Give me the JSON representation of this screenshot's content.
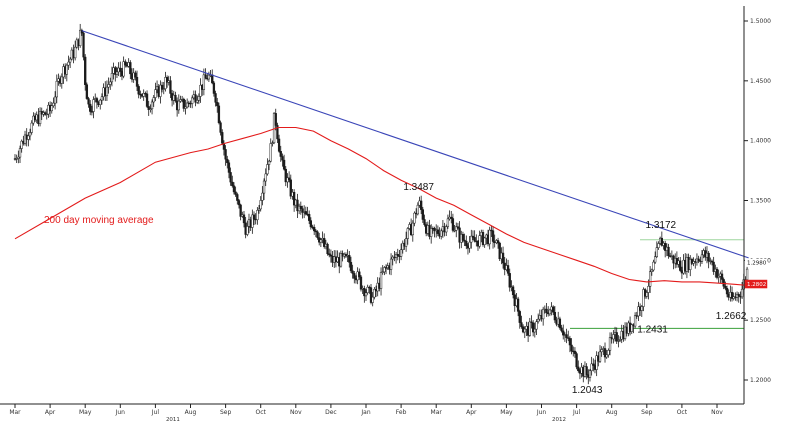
{
  "chart_data": {
    "type": "candlestick",
    "title": "",
    "xlabel": "",
    "ylabel": "",
    "ylim": [
      1.18,
      1.51
    ],
    "y_ticks": [
      "1.5000",
      "1.4500",
      "1.4000",
      "1.3500",
      "1.3000",
      "1.2500",
      "1.2000"
    ],
    "x_ticks": [
      "Mar",
      "Apr",
      "May",
      "Jun",
      "Jul",
      "Aug",
      "Sep",
      "Oct",
      "Nov",
      "Dec",
      "Jan",
      "Feb",
      "Mar",
      "Apr",
      "May",
      "Jun",
      "Jul",
      "Aug",
      "Sep",
      "Oct",
      "Nov"
    ],
    "year_labels": [
      {
        "label": "2011",
        "month_index": 4.5
      },
      {
        "label": "2012",
        "month_index": 15.5
      }
    ],
    "price_path": [
      [
        0.0,
        1.385
      ],
      [
        0.3,
        1.405
      ],
      [
        0.6,
        1.418
      ],
      [
        1.0,
        1.425
      ],
      [
        1.3,
        1.455
      ],
      [
        1.7,
        1.475
      ],
      [
        1.9,
        1.492
      ],
      [
        2.0,
        1.45
      ],
      [
        2.1,
        1.428
      ],
      [
        2.5,
        1.438
      ],
      [
        2.8,
        1.455
      ],
      [
        3.2,
        1.462
      ],
      [
        3.5,
        1.445
      ],
      [
        3.8,
        1.43
      ],
      [
        4.0,
        1.438
      ],
      [
        4.3,
        1.45
      ],
      [
        4.6,
        1.43
      ],
      [
        4.9,
        1.43
      ],
      [
        5.2,
        1.44
      ],
      [
        5.5,
        1.455
      ],
      [
        5.7,
        1.44
      ],
      [
        6.0,
        1.385
      ],
      [
        6.3,
        1.35
      ],
      [
        6.6,
        1.325
      ],
      [
        6.9,
        1.34
      ],
      [
        7.1,
        1.37
      ],
      [
        7.3,
        1.395
      ],
      [
        7.4,
        1.422
      ],
      [
        7.6,
        1.38
      ],
      [
        8.0,
        1.345
      ],
      [
        8.5,
        1.33
      ],
      [
        9.0,
        1.3
      ],
      [
        9.5,
        1.3
      ],
      [
        9.9,
        1.278
      ],
      [
        10.2,
        1.268
      ],
      [
        10.5,
        1.29
      ],
      [
        11.0,
        1.31
      ],
      [
        11.3,
        1.328
      ],
      [
        11.5,
        1.3487
      ],
      [
        11.8,
        1.32
      ],
      [
        12.1,
        1.325
      ],
      [
        12.4,
        1.335
      ],
      [
        12.7,
        1.318
      ],
      [
        13.0,
        1.315
      ],
      [
        13.3,
        1.318
      ],
      [
        13.6,
        1.32
      ],
      [
        13.9,
        1.3
      ],
      [
        14.2,
        1.272
      ],
      [
        14.5,
        1.24
      ],
      [
        14.8,
        1.245
      ],
      [
        15.2,
        1.26
      ],
      [
        15.5,
        1.25
      ],
      [
        15.8,
        1.228
      ],
      [
        16.1,
        1.21
      ],
      [
        16.3,
        1.2043
      ],
      [
        16.6,
        1.218
      ],
      [
        16.9,
        1.228
      ],
      [
        17.2,
        1.238
      ],
      [
        17.5,
        1.2431
      ],
      [
        17.8,
        1.262
      ],
      [
        18.1,
        1.285
      ],
      [
        18.4,
        1.3172
      ],
      [
        18.7,
        1.302
      ],
      [
        19.0,
        1.295
      ],
      [
        19.3,
        1.3
      ],
      [
        19.6,
        1.305
      ],
      [
        19.8,
        1.3
      ],
      [
        20.1,
        1.285
      ],
      [
        20.4,
        1.2662
      ],
      [
        20.7,
        1.275
      ],
      [
        20.9,
        1.296
      ]
    ],
    "series": [
      {
        "name": "200 day moving average",
        "color": "#e31b1b",
        "points": [
          [
            0.0,
            1.318
          ],
          [
            1.0,
            1.335
          ],
          [
            2.0,
            1.352
          ],
          [
            3.0,
            1.365
          ],
          [
            4.0,
            1.382
          ],
          [
            5.0,
            1.39
          ],
          [
            5.5,
            1.393
          ],
          [
            6.0,
            1.398
          ],
          [
            6.5,
            1.402
          ],
          [
            7.0,
            1.406
          ],
          [
            7.5,
            1.411
          ],
          [
            8.0,
            1.411
          ],
          [
            8.5,
            1.408
          ],
          [
            9.0,
            1.4
          ],
          [
            9.5,
            1.393
          ],
          [
            10.0,
            1.385
          ],
          [
            10.5,
            1.375
          ],
          [
            11.0,
            1.367
          ],
          [
            11.5,
            1.36
          ],
          [
            12.0,
            1.352
          ],
          [
            12.5,
            1.346
          ],
          [
            13.0,
            1.338
          ],
          [
            13.5,
            1.33
          ],
          [
            14.0,
            1.322
          ],
          [
            14.5,
            1.315
          ],
          [
            15.0,
            1.31
          ],
          [
            15.5,
            1.305
          ],
          [
            16.0,
            1.3
          ],
          [
            16.5,
            1.295
          ],
          [
            17.0,
            1.289
          ],
          [
            17.5,
            1.284
          ],
          [
            18.0,
            1.282
          ],
          [
            18.5,
            1.283
          ],
          [
            19.0,
            1.282
          ],
          [
            19.5,
            1.282
          ],
          [
            20.0,
            1.281
          ],
          [
            20.5,
            1.28
          ],
          [
            20.9,
            1.279
          ]
        ]
      },
      {
        "name": "Trend line",
        "color": "#3b46b8",
        "points": [
          [
            1.9,
            1.492
          ],
          [
            20.9,
            1.302
          ]
        ]
      }
    ],
    "horizontal_lines": [
      {
        "value": 1.3172,
        "color": "#9ed59e"
      },
      {
        "value": 1.2431,
        "color": "#3aa03a"
      }
    ],
    "annotations": [
      {
        "text": "1.3487",
        "x": 11.5,
        "y": 1.3487,
        "position": "above"
      },
      {
        "text": "1.3172",
        "x": 18.4,
        "y": 1.3172,
        "position": "above"
      },
      {
        "text": "1.2431",
        "x": 17.5,
        "y": 1.2431,
        "position": "right"
      },
      {
        "text": "1.2043",
        "x": 16.3,
        "y": 1.2043,
        "position": "below"
      },
      {
        "text": "1.2662",
        "x": 20.4,
        "y": 1.2662,
        "position": "below"
      }
    ],
    "ma_label": "200 day moving average",
    "price_badges": [
      {
        "text": "1.2980",
        "value": 1.298,
        "color": "#111111",
        "fill": "#ffffff"
      },
      {
        "text": "1.2802",
        "value": 1.2802,
        "color": "#ffffff",
        "fill": "#e31b1b"
      }
    ]
  }
}
